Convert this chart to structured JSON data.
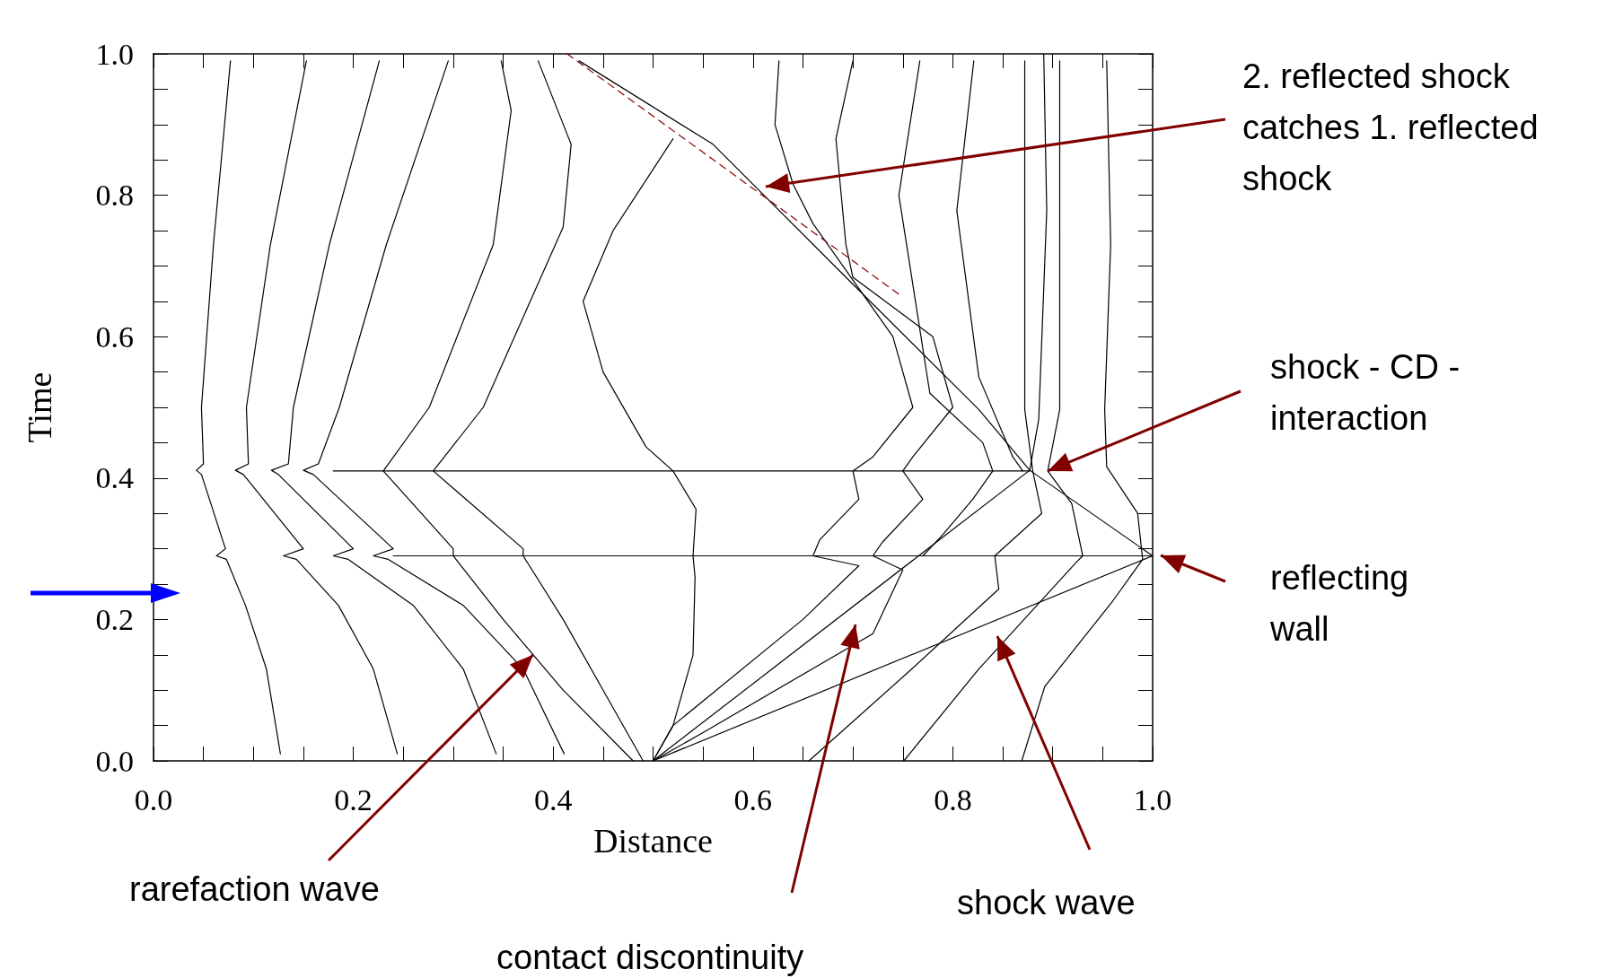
{
  "chart_data": {
    "type": "line",
    "xlabel": "Distance",
    "ylabel": "Time",
    "xlim": [
      0,
      1
    ],
    "ylim": [
      0,
      1
    ],
    "xticks": [
      {
        "value": 0,
        "label": "0.0"
      },
      {
        "value": 0.05,
        "label": null
      },
      {
        "value": 0.1,
        "label": null
      },
      {
        "value": 0.15,
        "label": null
      },
      {
        "value": 0.2,
        "label": "0.2"
      },
      {
        "value": 0.25,
        "label": null
      },
      {
        "value": 0.3,
        "label": null
      },
      {
        "value": 0.35,
        "label": null
      },
      {
        "value": 0.4,
        "label": "0.4"
      },
      {
        "value": 0.45,
        "label": null
      },
      {
        "value": 0.5,
        "label": null
      },
      {
        "value": 0.55,
        "label": null
      },
      {
        "value": 0.6,
        "label": "0.6"
      },
      {
        "value": 0.65,
        "label": null
      },
      {
        "value": 0.7,
        "label": null
      },
      {
        "value": 0.75,
        "label": null
      },
      {
        "value": 0.8,
        "label": "0.8"
      },
      {
        "value": 0.85,
        "label": null
      },
      {
        "value": 0.9,
        "label": null
      },
      {
        "value": 0.95,
        "label": null
      },
      {
        "value": 1,
        "label": "1.0"
      }
    ],
    "yticks": [
      {
        "value": 0,
        "label": "0.0"
      },
      {
        "value": 0.05,
        "label": null
      },
      {
        "value": 0.1,
        "label": null
      },
      {
        "value": 0.15,
        "label": null
      },
      {
        "value": 0.2,
        "label": "0.2"
      },
      {
        "value": 0.25,
        "label": null
      },
      {
        "value": 0.3,
        "label": null
      },
      {
        "value": 0.35,
        "label": null
      },
      {
        "value": 0.4,
        "label": "0.4"
      },
      {
        "value": 0.45,
        "label": null
      },
      {
        "value": 0.5,
        "label": null
      },
      {
        "value": 0.55,
        "label": null
      },
      {
        "value": 0.6,
        "label": "0.6"
      },
      {
        "value": 0.65,
        "label": null
      },
      {
        "value": 0.7,
        "label": null
      },
      {
        "value": 0.75,
        "label": null
      },
      {
        "value": 0.8,
        "label": "0.8"
      },
      {
        "value": 0.85,
        "label": null
      },
      {
        "value": 0.9,
        "label": null
      },
      {
        "value": 0.95,
        "label": null
      },
      {
        "value": 1,
        "label": "1.0"
      }
    ],
    "grid": false,
    "marker": "none",
    "line_style": "solid",
    "series": [
      {
        "color": "#000000",
        "x": [
          0.127,
          0.113,
          0.092,
          0.073,
          0.063,
          0.072,
          0.048,
          0.043,
          0.05,
          0.048,
          0.06,
          0.077
        ],
        "values": [
          0.01,
          0.13,
          0.22,
          0.285,
          0.29,
          0.3,
          0.405,
          0.411,
          0.42,
          0.5,
          0.73,
          0.99
        ]
      },
      {
        "color": "#000000",
        "x": [
          0.244,
          0.22,
          0.185,
          0.143,
          0.13,
          0.15,
          0.09,
          0.082,
          0.095,
          0.093,
          0.117,
          0.153
        ],
        "values": [
          0.01,
          0.13,
          0.22,
          0.285,
          0.29,
          0.3,
          0.405,
          0.411,
          0.42,
          0.5,
          0.73,
          0.99
        ]
      },
      {
        "color": "#000000",
        "x": [
          0.343,
          0.31,
          0.26,
          0.195,
          0.18,
          0.2,
          0.125,
          0.118,
          0.135,
          0.14,
          0.176,
          0.226
        ],
        "values": [
          0.01,
          0.13,
          0.22,
          0.285,
          0.29,
          0.3,
          0.405,
          0.411,
          0.42,
          0.5,
          0.73,
          0.99
        ]
      },
      {
        "color": "#000000",
        "x": [
          0.411,
          0.37,
          0.31,
          0.235,
          0.22,
          0.24,
          0.16,
          0.15,
          0.165,
          0.186,
          0.233,
          0.295
        ],
        "values": [
          0.01,
          0.13,
          0.22,
          0.285,
          0.29,
          0.3,
          0.405,
          0.411,
          0.42,
          0.5,
          0.73,
          0.99
        ]
      },
      {
        "color": "#000000",
        "x": [
          0.48,
          0.41,
          0.35,
          0.3,
          0.3,
          0.23,
          0.276,
          0.34,
          0.358,
          0.348
        ],
        "values": [
          0,
          0.1,
          0.2,
          0.29,
          0.3,
          0.41,
          0.5,
          0.73,
          0.92,
          0.99
        ]
      },
      {
        "color": "#000000",
        "x": [
          0.49,
          0.45,
          0.41,
          0.37,
          0.37,
          0.28,
          0.33,
          0.41,
          0.418,
          0.385
        ],
        "values": [
          0,
          0.1,
          0.2,
          0.29,
          0.3,
          0.41,
          0.5,
          0.755,
          0.872,
          0.99
        ]
      },
      {
        "color": "#000000",
        "x": [
          0.5,
          0.52,
          0.54,
          0.542,
          0.54,
          0.543,
          0.52,
          0.493,
          0.45,
          0.43,
          0.46,
          0.52
        ],
        "values": [
          0,
          0.05,
          0.15,
          0.26,
          0.29,
          0.356,
          0.41,
          0.444,
          0.55,
          0.65,
          0.75,
          0.88
        ]
      },
      {
        "color": "#000000",
        "x": [
          0.5,
          0.52,
          0.65,
          0.706,
          0.66,
          0.667,
          0.706,
          0.7,
          0.72,
          0.76,
          0.74,
          0.7,
          0.66,
          0.64,
          0.622,
          0.626
        ],
        "values": [
          0,
          0.05,
          0.2,
          0.276,
          0.29,
          0.313,
          0.37,
          0.41,
          0.43,
          0.5,
          0.6,
          0.68,
          0.76,
          0.816,
          0.9,
          0.99
        ]
      },
      {
        "color": "#000000",
        "x": [
          0.5,
          0.55,
          0.72,
          0.75,
          0.72,
          0.73,
          0.77,
          0.75,
          0.76,
          0.8,
          0.78,
          0.7,
          0.693,
          0.683,
          0.7
        ],
        "values": [
          0,
          0.04,
          0.18,
          0.27,
          0.29,
          0.31,
          0.37,
          0.41,
          0.43,
          0.5,
          0.6,
          0.684,
          0.73,
          0.88,
          0.99
        ]
      },
      {
        "color": "#000000",
        "x": [
          0.77,
          0.79,
          0.82,
          0.84,
          0.83,
          0.777,
          0.746,
          0.767
        ],
        "values": [
          0.29,
          0.32,
          0.37,
          0.41,
          0.45,
          0.52,
          0.8,
          0.99
        ]
      },
      {
        "color": "#000000",
        "x": [
          0.87,
          0.86,
          0.826,
          0.804,
          0.821
        ],
        "values": [
          0.41,
          0.43,
          0.543,
          0.778,
          0.99
        ]
      },
      {
        "color": "#000000",
        "x": [
          0.869,
          0.892,
          0.959,
          0.99,
          0.985,
          0.954,
          0.952,
          0.958,
          0.954
        ],
        "values": [
          0,
          0.105,
          0.224,
          0.285,
          0.35,
          0.416,
          0.497,
          0.73,
          0.99
        ]
      },
      {
        "color": "#000000",
        "x": [
          0.751,
          0.826,
          0.923,
          0.93,
          0.919,
          0.895,
          0.907,
          0.907,
          0.907
        ],
        "values": [
          0,
          0.13,
          0.28,
          0.29,
          0.364,
          0.41,
          0.497,
          0.73,
          0.99
        ]
      },
      {
        "color": "#000000",
        "x": [
          0.656,
          0.759,
          0.846,
          0.842,
          0.889,
          0.88,
          0.872,
          0.872
        ],
        "values": [
          0,
          0.13,
          0.243,
          0.29,
          0.35,
          0.41,
          0.497,
          0.99
        ]
      },
      {
        "color": "#000000",
        "x": [
          0.5,
          1.0,
          0.877,
          0.826,
          0.693,
          0.56,
          0.426
        ],
        "values": [
          0,
          0.29,
          0.411,
          0.497,
          0.684,
          0.872,
          0.99
        ]
      },
      {
        "color": "#000000",
        "x": [
          0.5,
          0.764,
          0.877,
          0.886,
          0.894,
          0.891
        ],
        "values": [
          0,
          0.288,
          0.411,
          0.483,
          0.778,
          1.0
        ]
      },
      {
        "color": "#000000",
        "x": [
          0.24,
          1.0
        ],
        "values": [
          0.29,
          0.29
        ]
      },
      {
        "color": "#000000",
        "x": [
          0.18,
          0.877
        ],
        "values": [
          0.41,
          0.41
        ]
      },
      {
        "color": "#8b0000",
        "line_style": "dashed",
        "x": [
          0.414,
          0.746
        ],
        "values": [
          1.0,
          0.66
        ]
      }
    ],
    "annotations": [
      "2. reflected shock catches 1. reflected shock",
      {
        "text": "shock - CD - interaction",
        "x": 0.895,
        "y": 0.41
      },
      "reflecting wall",
      "shock wave",
      "contact discontinuity",
      {
        "text": "rarefaction wave",
        "x": 0.38,
        "y": 0.15
      }
    ]
  }
}
